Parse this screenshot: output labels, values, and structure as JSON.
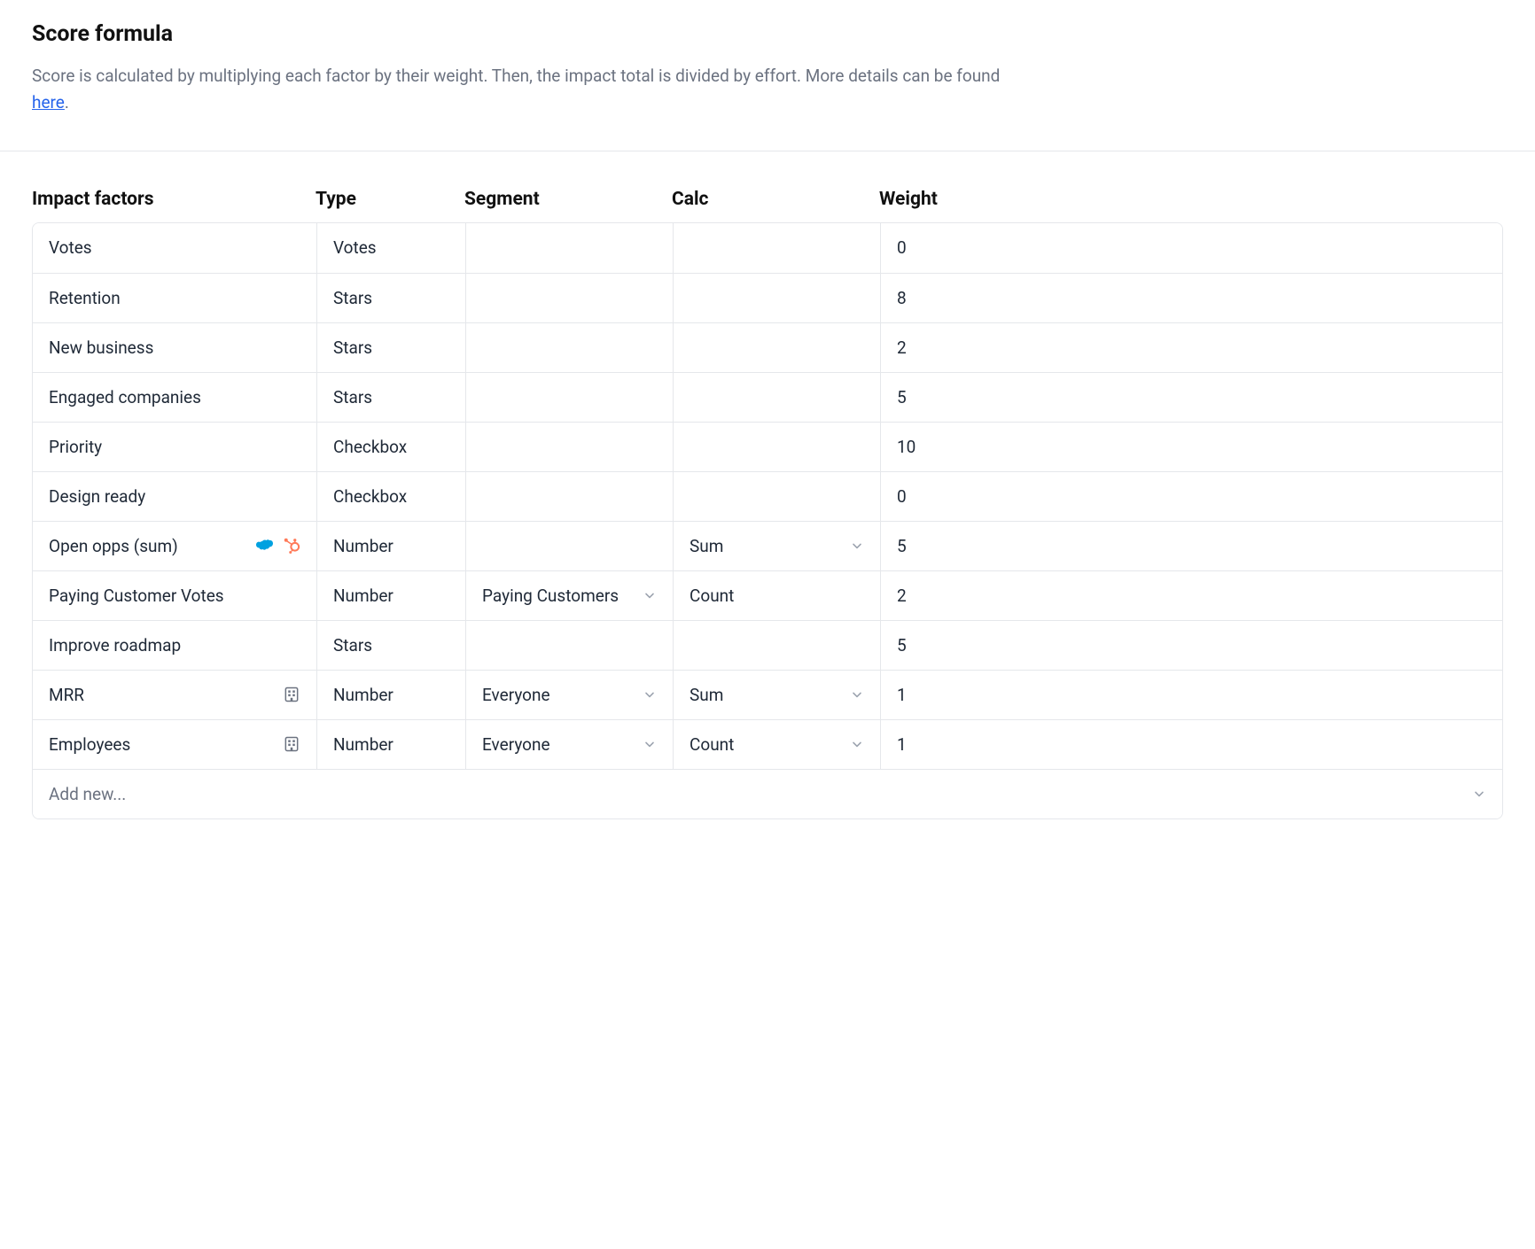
{
  "header": {
    "title": "Score formula",
    "description_pre": "Score is calculated by multiplying each factor by their weight. Then, the impact total is divided by effort. More details can be found ",
    "description_link_text": "here",
    "description_post": "."
  },
  "columns": {
    "impact_factors": "Impact factors",
    "type": "Type",
    "segment": "Segment",
    "calc": "Calc",
    "weight": "Weight"
  },
  "rows": [
    {
      "name": "Votes",
      "type": "Votes",
      "segment": "",
      "calc": "",
      "weight": "0",
      "icons": [],
      "segment_select": false,
      "calc_select": false
    },
    {
      "name": "Retention",
      "type": "Stars",
      "segment": "",
      "calc": "",
      "weight": "8",
      "icons": [],
      "segment_select": false,
      "calc_select": false
    },
    {
      "name": "New business",
      "type": "Stars",
      "segment": "",
      "calc": "",
      "weight": "2",
      "icons": [],
      "segment_select": false,
      "calc_select": false
    },
    {
      "name": "Engaged companies",
      "type": "Stars",
      "segment": "",
      "calc": "",
      "weight": "5",
      "icons": [],
      "segment_select": false,
      "calc_select": false
    },
    {
      "name": "Priority",
      "type": "Checkbox",
      "segment": "",
      "calc": "",
      "weight": "10",
      "icons": [],
      "segment_select": false,
      "calc_select": false
    },
    {
      "name": "Design ready",
      "type": "Checkbox",
      "segment": "",
      "calc": "",
      "weight": "0",
      "icons": [],
      "segment_select": false,
      "calc_select": false
    },
    {
      "name": "Open opps (sum)",
      "type": "Number",
      "segment": "",
      "calc": "Sum",
      "weight": "5",
      "icons": [
        "salesforce",
        "hubspot"
      ],
      "segment_select": false,
      "calc_select": true
    },
    {
      "name": "Paying Customer Votes",
      "type": "Number",
      "segment": "Paying Customers",
      "calc": "Count",
      "weight": "2",
      "icons": [],
      "segment_select": true,
      "calc_select": false
    },
    {
      "name": "Improve roadmap",
      "type": "Stars",
      "segment": "",
      "calc": "",
      "weight": "5",
      "icons": [],
      "segment_select": false,
      "calc_select": false
    },
    {
      "name": "MRR",
      "type": "Number",
      "segment": "Everyone",
      "calc": "Sum",
      "weight": "1",
      "icons": [
        "building"
      ],
      "segment_select": true,
      "calc_select": true
    },
    {
      "name": "Employees",
      "type": "Number",
      "segment": "Everyone",
      "calc": "Count",
      "weight": "1",
      "icons": [
        "building"
      ],
      "segment_select": true,
      "calc_select": true
    }
  ],
  "add_new_label": "Add new...",
  "colors": {
    "text": "#1f2937",
    "muted": "#6b7280",
    "border": "#e5e7eb",
    "link": "#2563eb",
    "chevron": "#9ca3af",
    "salesforce": "#00a1e0",
    "hubspot": "#ff7a59",
    "building": "#6b7280"
  }
}
